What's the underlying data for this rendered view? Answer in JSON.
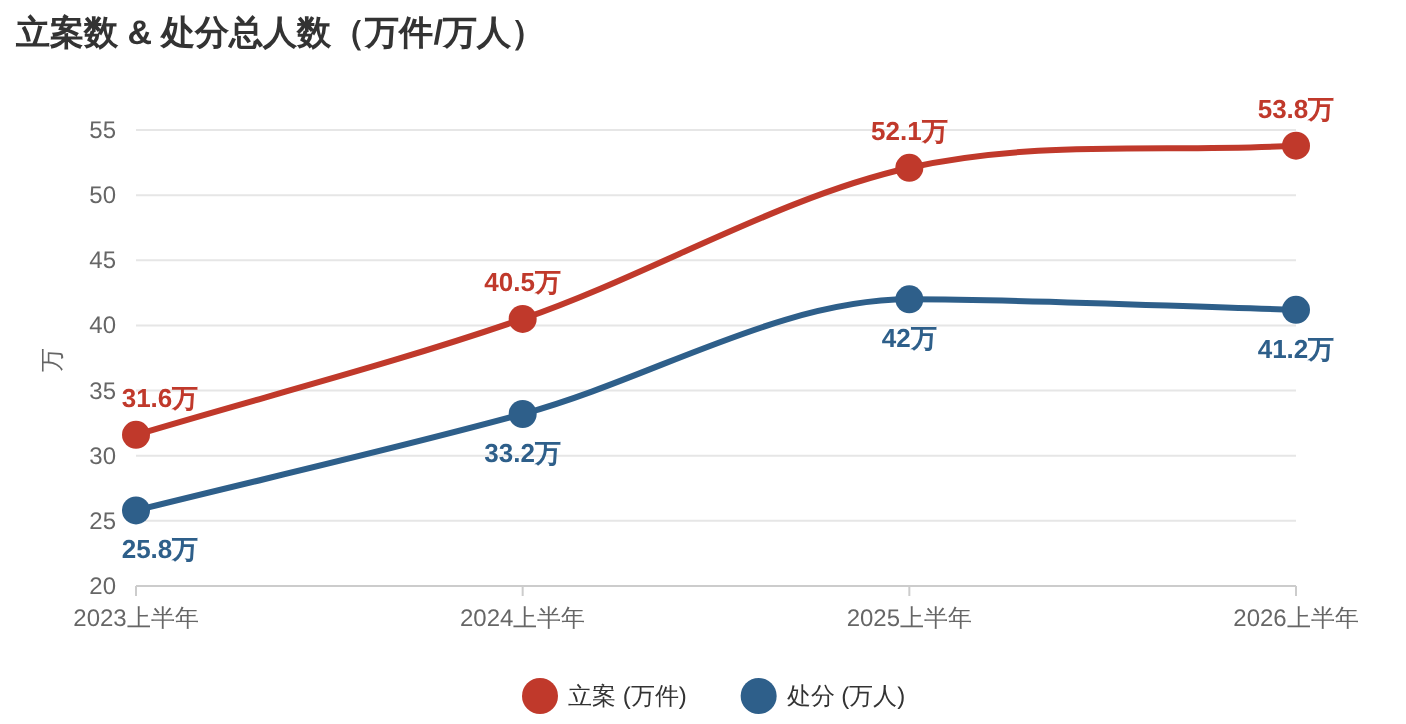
{
  "chart_data": {
    "type": "line",
    "title": "立案数 & 处分总人数（万件/万人）",
    "ylabel": "万",
    "categories": [
      "2023上半年",
      "2024上半年",
      "2025上半年",
      "2026上半年"
    ],
    "series": [
      {
        "name": "立案 (万件)",
        "color": "#c0392b",
        "values": [
          31.6,
          40.5,
          52.1,
          53.8
        ],
        "value_labels": [
          "31.6万",
          "40.5万",
          "52.1万",
          "53.8万"
        ]
      },
      {
        "name": "处分 (万人)",
        "color": "#2e5f8a",
        "values": [
          25.8,
          33.2,
          42,
          41.2
        ],
        "value_labels": [
          "25.8万",
          "33.2万",
          "42万",
          "41.2万"
        ]
      }
    ],
    "ylim": [
      20,
      55
    ],
    "yticks": [
      20,
      25,
      30,
      35,
      40,
      45,
      50,
      55
    ],
    "grid": "y",
    "legend": "bottom",
    "marker": "circle",
    "line_style": "solid"
  }
}
